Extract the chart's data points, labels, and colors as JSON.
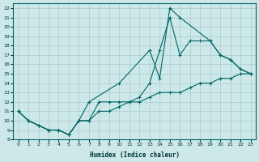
{
  "xlabel": "Humidex (Indice chaleur)",
  "bg_color": "#cce8e8",
  "grid_color": "#aacccc",
  "line_color": "#006666",
  "xlim": [
    -0.5,
    23.5
  ],
  "ylim": [
    8,
    22.5
  ],
  "xticks": [
    0,
    1,
    2,
    3,
    4,
    5,
    6,
    7,
    8,
    9,
    10,
    11,
    12,
    13,
    14,
    15,
    16,
    17,
    18,
    19,
    20,
    21,
    22,
    23
  ],
  "yticks": [
    8,
    9,
    10,
    11,
    12,
    13,
    14,
    15,
    16,
    17,
    18,
    19,
    20,
    21,
    22
  ],
  "line1_x": [
    0,
    1,
    2,
    3,
    4,
    5,
    6,
    7,
    8,
    9,
    10,
    11,
    12,
    13,
    14,
    15,
    16,
    17,
    18,
    19,
    20,
    21,
    22,
    23
  ],
  "line1_y": [
    11,
    10,
    9.5,
    9,
    9,
    8.5,
    10,
    10,
    12,
    12,
    12,
    12,
    12.5,
    14,
    17.5,
    21,
    17,
    18.5,
    18.5,
    18.5,
    17,
    16.5,
    15.5,
    15
  ],
  "line2_x": [
    0,
    1,
    2,
    3,
    4,
    5,
    6,
    7,
    10,
    13,
    14,
    15,
    16,
    19,
    20,
    21,
    22,
    23
  ],
  "line2_y": [
    11,
    10,
    9.5,
    9,
    9,
    8.5,
    10,
    12,
    14,
    17.5,
    14.5,
    22,
    21,
    18.5,
    17,
    16.5,
    15.5,
    15
  ],
  "line3_x": [
    0,
    1,
    2,
    3,
    4,
    5,
    6,
    7,
    8,
    9,
    10,
    11,
    12,
    13,
    14,
    15,
    16,
    17,
    18,
    19,
    20,
    21,
    22,
    23
  ],
  "line3_y": [
    11,
    10,
    9.5,
    9,
    9,
    8.5,
    10,
    10,
    11,
    11,
    11.5,
    12,
    12,
    12.5,
    13,
    13,
    13,
    13.5,
    14,
    14,
    14.5,
    14.5,
    15,
    15
  ]
}
